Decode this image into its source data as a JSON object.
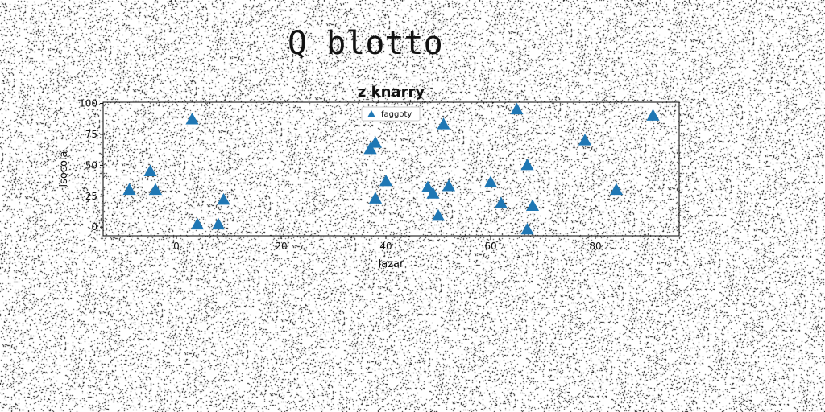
{
  "suptitle": "Q blotto",
  "chart_data": {
    "type": "scatter",
    "title": "z knarry",
    "xlabel": "lazar",
    "ylabel": "isocola",
    "xlim": [
      -14,
      96
    ],
    "ylim": [
      -7,
      101
    ],
    "xticks": [
      0,
      20,
      40,
      60,
      80
    ],
    "yticks": [
      0,
      25,
      50,
      75,
      100
    ],
    "grid": false,
    "legend_position": "top-center",
    "series": [
      {
        "name": "faggoty",
        "marker": "triangle-up",
        "color": "#1f77b4",
        "x": [
          -9,
          -5,
          -4,
          3,
          4,
          8,
          9,
          37,
          38,
          38,
          40,
          48,
          49,
          50,
          51,
          52,
          60,
          62,
          65,
          67,
          67,
          68,
          78,
          84,
          91
        ],
        "y": [
          30,
          45,
          30,
          87,
          2,
          2,
          22,
          63,
          68,
          23,
          37,
          32,
          27,
          9,
          83,
          33,
          36,
          19,
          95,
          50,
          -2,
          17,
          70,
          30,
          90
        ]
      }
    ]
  }
}
